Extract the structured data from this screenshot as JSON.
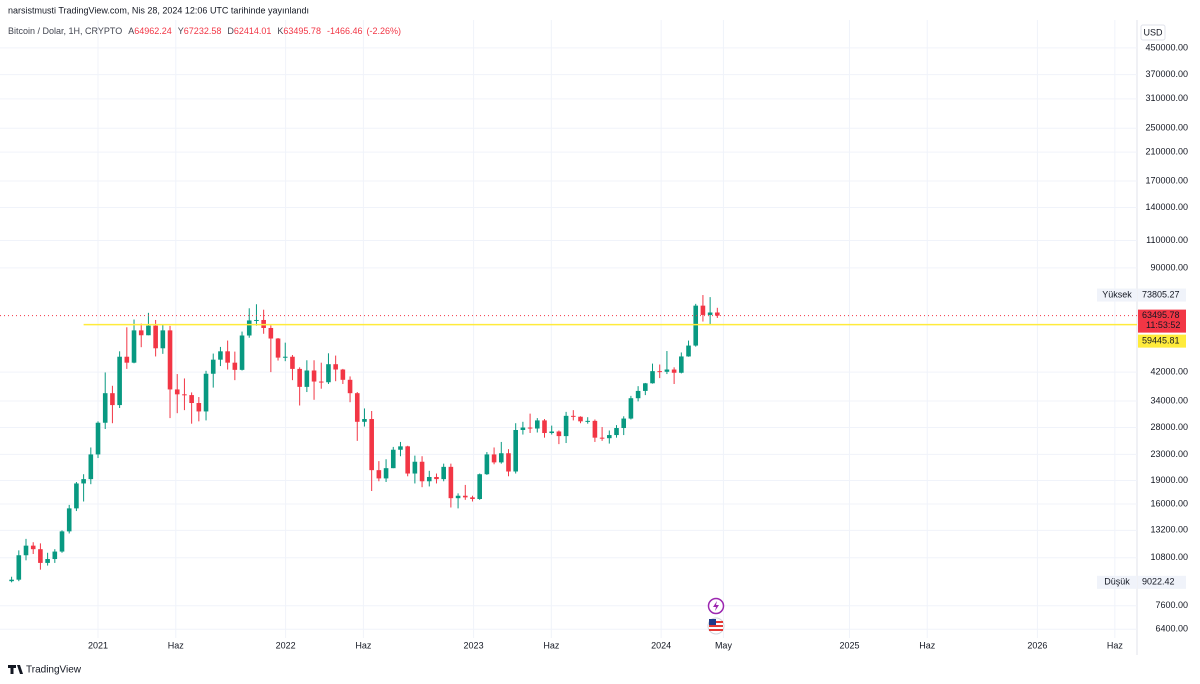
{
  "header": {
    "publisher": "narsistmusti TradingView.com, Nis 28, 2024 12:06 UTC tarihinde yayınlandı"
  },
  "footer": {
    "brand": "TradingView"
  },
  "chart_data": {
    "type": "candlestick",
    "title": "Bitcoin / Dolar, 1H, CRYPTO",
    "ohlc_legend": {
      "open": {
        "prefix": "A",
        "value": 64962.24
      },
      "high": {
        "prefix": "Y",
        "value": 67232.58
      },
      "low": {
        "prefix": "D",
        "value": 62414.01
      },
      "close": {
        "prefix": "K",
        "value": 63495.78
      }
    },
    "change": {
      "value": -1466.46,
      "label": "-1466.46"
    },
    "change_pct": {
      "value": -2.26,
      "label": "(-2.26%)"
    },
    "currency": "USD",
    "up_color": "#089981",
    "down_color": "#f23645",
    "log_scale": true,
    "grid": true,
    "xlim": [
      -25,
      288
    ],
    "xticks": [
      {
        "value": 0,
        "label": "2021"
      },
      {
        "value": 21.6,
        "label": "Haz"
      },
      {
        "value": 52.1,
        "label": "2022"
      },
      {
        "value": 73.7,
        "label": "Haz"
      },
      {
        "value": 104.3,
        "label": "2023"
      },
      {
        "value": 125.9,
        "label": "Haz"
      },
      {
        "value": 156.4,
        "label": "2024"
      },
      {
        "value": 173.7,
        "label": "May"
      },
      {
        "value": 208.7,
        "label": "2025"
      },
      {
        "value": 230.3,
        "label": "Haz"
      },
      {
        "value": 260.9,
        "label": "2026"
      },
      {
        "value": 282.4,
        "label": "Haz"
      }
    ],
    "ylim": [
      5500,
      552000
    ],
    "yticks": [
      {
        "value": 450000,
        "label": "450000.00"
      },
      {
        "value": 370000,
        "label": "370000.00"
      },
      {
        "value": 310000,
        "label": "310000.00"
      },
      {
        "value": 250000,
        "label": "250000.00"
      },
      {
        "value": 210000,
        "label": "210000.00"
      },
      {
        "value": 170000,
        "label": "170000.00"
      },
      {
        "value": 140000,
        "label": "140000.00"
      },
      {
        "value": 110000,
        "label": "110000.00"
      },
      {
        "value": 90000,
        "label": "90000.00"
      },
      {
        "value": 42000,
        "label": "42000.00"
      },
      {
        "value": 34000,
        "label": "34000.00"
      },
      {
        "value": 28000,
        "label": "28000.00"
      },
      {
        "value": 23000,
        "label": "23000.00"
      },
      {
        "value": 19000,
        "label": "19000.00"
      },
      {
        "value": 16000,
        "label": "16000.00"
      },
      {
        "value": 13200,
        "label": "13200.00"
      },
      {
        "value": 10800,
        "label": "10800.00"
      },
      {
        "value": 7600,
        "label": "7600.00"
      },
      {
        "value": 6400,
        "label": "6400.00"
      }
    ],
    "x": [
      -24,
      -22,
      -20,
      -18,
      -16,
      -14,
      -12,
      -10,
      -8,
      -6,
      -4,
      -2,
      0,
      2,
      4,
      6,
      8,
      10,
      12,
      14,
      16,
      18,
      20,
      22,
      24,
      26,
      28,
      30,
      32,
      34,
      36,
      38,
      40,
      42,
      44,
      46,
      48,
      50,
      52,
      54,
      56,
      58,
      60,
      62,
      64,
      66,
      68,
      70,
      72,
      74,
      76,
      78,
      80,
      82,
      84,
      86,
      88,
      90,
      92,
      94,
      96,
      98,
      100,
      102,
      104,
      106,
      108,
      110,
      112,
      114,
      116,
      118,
      120,
      122,
      124,
      126,
      128,
      130,
      132,
      134,
      136,
      138,
      140,
      142,
      144,
      146,
      148,
      150,
      152,
      154,
      156,
      158,
      160,
      162,
      164,
      166,
      168,
      170,
      172
    ],
    "open": [
      9100,
      9200,
      11000,
      11800,
      11500,
      10400,
      10700,
      11300,
      13100,
      15500,
      18600,
      19200,
      23000,
      29000,
      36000,
      33000,
      47000,
      45000,
      57000,
      55000,
      59000,
      50000,
      57000,
      37000,
      35700,
      35500,
      33500,
      31500,
      41500,
      46000,
      48900,
      45000,
      42700,
      54900,
      61300,
      61500,
      58000,
      53700,
      46700,
      47000,
      43000,
      37700,
      42500,
      39200,
      39000,
      44500,
      42800,
      39700,
      36000,
      29200,
      29800,
      20500,
      19300,
      20800,
      23800,
      24400,
      20000,
      21800,
      18900,
      19500,
      19200,
      21000,
      16700,
      17000,
      16800,
      16600,
      19900,
      23000,
      21700,
      23200,
      20300,
      27500,
      28000,
      27800,
      29500,
      26900,
      27200,
      26300,
      30500,
      30300,
      29300,
      29400,
      26000,
      25900,
      26500,
      27900,
      29900,
      34700,
      36600,
      38700,
      42300,
      42100,
      42800,
      41800,
      47100,
      51000,
      68300,
      63800,
      64962.24
    ],
    "high": [
      9400,
      11400,
      12400,
      12100,
      12000,
      11200,
      11500,
      13200,
      15900,
      18800,
      19900,
      24200,
      29300,
      41900,
      38000,
      48900,
      58300,
      61700,
      59900,
      64800,
      61500,
      59500,
      58900,
      41400,
      40100,
      36200,
      35000,
      42400,
      48100,
      50500,
      52900,
      48800,
      56500,
      67000,
      69000,
      66300,
      59100,
      53900,
      52100,
      47600,
      43500,
      45800,
      45800,
      45000,
      48200,
      47400,
      43000,
      40700,
      36300,
      32200,
      31600,
      21900,
      22200,
      24300,
      25200,
      24500,
      22800,
      22700,
      20400,
      20000,
      21500,
      21500,
      17300,
      18400,
      17000,
      20000,
      23400,
      24200,
      25200,
      23900,
      28900,
      29200,
      31000,
      30000,
      29800,
      28400,
      27400,
      31400,
      31800,
      30400,
      30200,
      29700,
      28100,
      27400,
      28500,
      30400,
      35300,
      37900,
      38800,
      44700,
      44400,
      49000,
      43500,
      48500,
      52900,
      69200,
      73805.27,
      72700,
      67232.58
    ],
    "low": [
      9022.42,
      9100,
      10600,
      11100,
      9900,
      10200,
      10400,
      11200,
      12900,
      15200,
      16300,
      18500,
      22400,
      27700,
      28900,
      32300,
      43000,
      44800,
      50400,
      55000,
      47100,
      48000,
      30000,
      31100,
      31800,
      28800,
      29300,
      29500,
      37500,
      43900,
      42800,
      39600,
      42500,
      54000,
      59000,
      55600,
      42000,
      45700,
      45500,
      39600,
      32900,
      36300,
      34300,
      37200,
      38500,
      39300,
      38500,
      33700,
      25400,
      28200,
      17600,
      18900,
      18800,
      20800,
      22700,
      19600,
      18600,
      18100,
      18200,
      18600,
      18900,
      15600,
      15500,
      16500,
      16300,
      16500,
      19800,
      21400,
      21500,
      19600,
      20000,
      26600,
      26900,
      27000,
      26000,
      26600,
      24800,
      25000,
      29500,
      28900,
      28800,
      25200,
      25400,
      24900,
      26000,
      26500,
      29700,
      33900,
      35500,
      38600,
      40200,
      41400,
      38500,
      41600,
      47000,
      50600,
      60800,
      59600,
      62414.01
    ],
    "close": [
      9200,
      11000,
      11800,
      11500,
      10400,
      10700,
      11300,
      13100,
      15500,
      18600,
      19200,
      23000,
      29000,
      36000,
      33000,
      47000,
      45000,
      57000,
      55000,
      59000,
      50000,
      57000,
      37000,
      35700,
      35500,
      33500,
      31500,
      41500,
      46000,
      48900,
      45000,
      42700,
      54900,
      61300,
      61500,
      58000,
      53700,
      46700,
      47000,
      43000,
      37700,
      42500,
      39200,
      39000,
      44500,
      42800,
      39700,
      36000,
      29200,
      29800,
      20500,
      19300,
      20800,
      23800,
      24400,
      20000,
      21800,
      18900,
      19500,
      19200,
      21000,
      16700,
      17000,
      16800,
      16600,
      19900,
      23000,
      21700,
      23200,
      20300,
      27500,
      28000,
      27800,
      29500,
      26900,
      27200,
      26300,
      30500,
      30300,
      29300,
      29400,
      26000,
      25900,
      26500,
      27900,
      29900,
      34700,
      36600,
      38700,
      42300,
      42100,
      42800,
      41800,
      47100,
      51000,
      68300,
      63800,
      64962.24,
      63495.78
    ],
    "price_markers": {
      "high": {
        "label": "Yüksek",
        "value": 73805.27
      },
      "low": {
        "label": "Düşük",
        "value": 9022.42
      },
      "last": {
        "value": 63495.78,
        "countdown": "11:53:52",
        "color": "#f23645"
      }
    },
    "horizontal_line": {
      "value": 59445.81,
      "x_start": -4,
      "color": "#ffeb3b"
    }
  }
}
